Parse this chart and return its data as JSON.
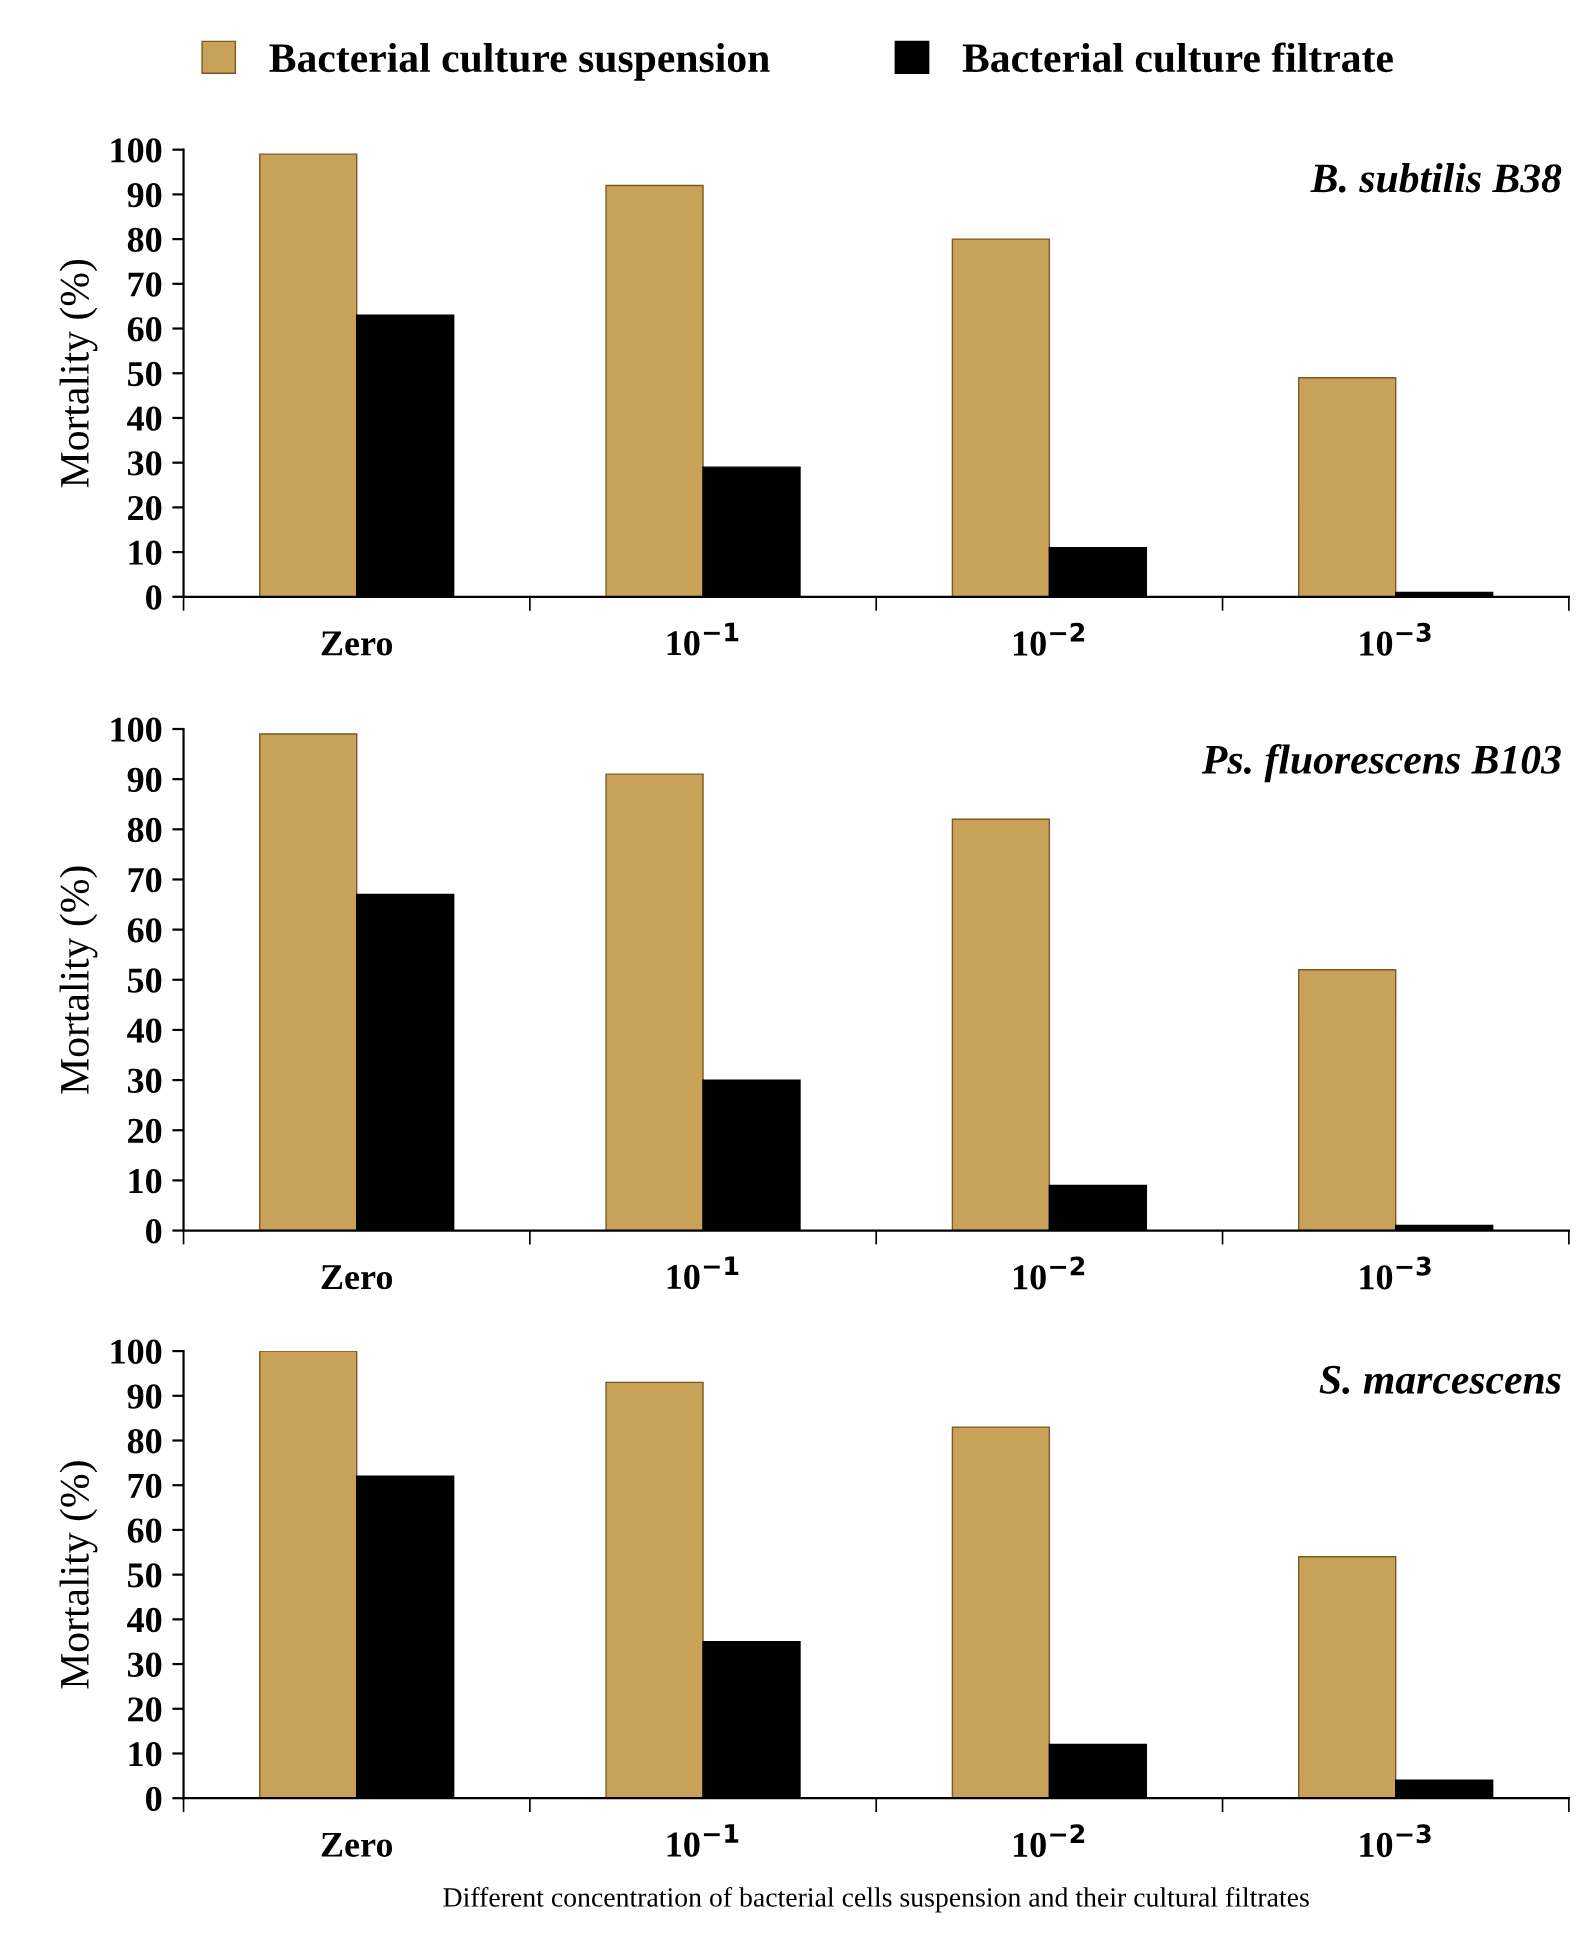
{
  "chart_data": [
    {
      "type": "bar",
      "title": "B. subtilis B38",
      "ylabel": "Mortality (%)",
      "categories": [
        "Zero",
        "10$^{−1}$",
        "10$^{−2}$",
        "10$^{−3}$"
      ],
      "series": [
        {
          "name": "Bacterial culture suspension",
          "color": "#c9a25a",
          "values": [
            99,
            92,
            80,
            49
          ]
        },
        {
          "name": "Bacterial culture filtrate",
          "color": "#000000",
          "values": [
            63,
            29,
            11,
            1
          ]
        }
      ],
      "ylim": [
        0,
        100
      ],
      "yticks": [
        0,
        10,
        20,
        30,
        40,
        50,
        60,
        70,
        80,
        90,
        100
      ],
      "legend": "top",
      "grid": false
    },
    {
      "type": "bar",
      "title": "Ps. fluorescens B103",
      "ylabel": "Mortality (%)",
      "categories": [
        "Zero",
        "10$^{−1}$",
        "10$^{−2}$",
        "10$^{−3}$"
      ],
      "series": [
        {
          "color": "#c9a25a",
          "values": [
            99,
            91,
            82,
            52
          ]
        },
        {
          "color": "#000000",
          "values": [
            67,
            30,
            9,
            1
          ]
        }
      ],
      "ylim": [
        0,
        100
      ],
      "yticks": [
        0,
        10,
        20,
        30,
        40,
        50,
        60,
        70,
        80,
        90,
        100
      ],
      "grid": false
    },
    {
      "type": "bar",
      "title": "S. marcescens",
      "ylabel": "Mortality (%)",
      "xlabel": "Different concentration of bacterial cells suspension and their cultural filtrates",
      "categories": [
        "Zero",
        "10$^{−1}$",
        "10$^{−2}$",
        "10$^{−3}$"
      ],
      "series": [
        {
          "color": "#c9a25a",
          "values": [
            100,
            93,
            83,
            54
          ]
        },
        {
          "color": "#000000",
          "values": [
            72,
            35,
            12,
            4
          ]
        }
      ],
      "ylim": [
        0,
        100
      ],
      "yticks": [
        0,
        10,
        20,
        30,
        40,
        50,
        60,
        70,
        80,
        90,
        100
      ],
      "grid": false
    }
  ]
}
